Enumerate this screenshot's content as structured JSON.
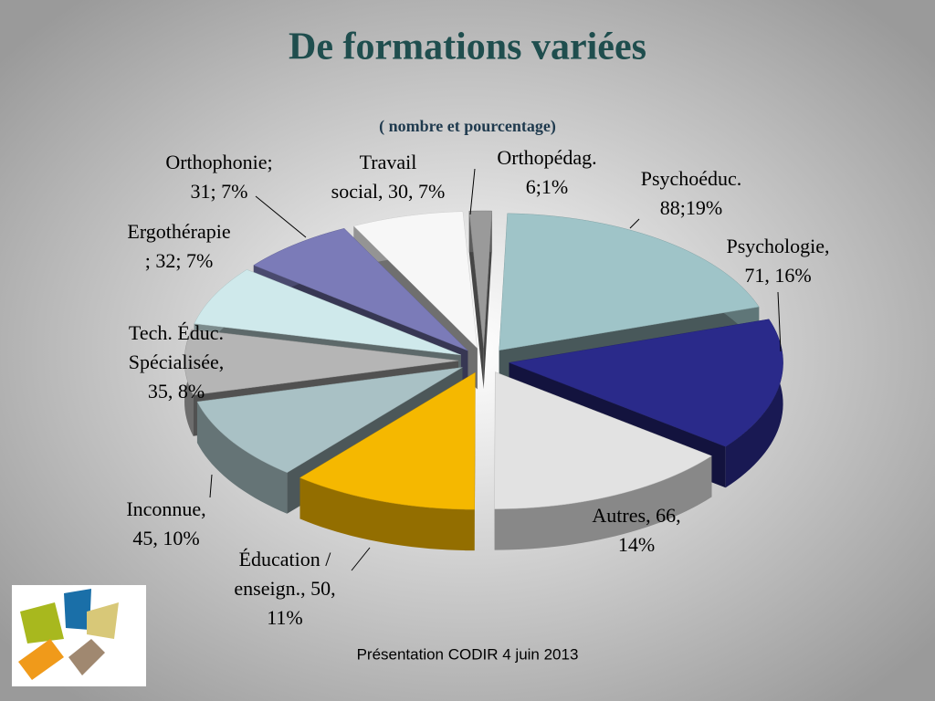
{
  "chart_data": {
    "type": "pie",
    "title": "De formations variées",
    "subtitle": "( nombre et pourcentage)",
    "categories": [
      "Psychoéduc.",
      "Psychologie",
      "Autres",
      "Éducation / enseign.",
      "Inconnue",
      "Tech. Éduc. Spécialisée",
      "Ergothérapie",
      "Orthophonie",
      "Travail social",
      "Orthopédag."
    ],
    "values": [
      88,
      71,
      66,
      50,
      45,
      35,
      32,
      31,
      30,
      6
    ],
    "value_labels": [
      [
        "Psychoéduc.",
        "88;19%"
      ],
      [
        "Psychologie,",
        "71, 16%"
      ],
      [
        "Autres, 66,",
        "14%"
      ],
      [
        "Éducation /",
        "enseign., 50,",
        "11%"
      ],
      [
        "Inconnue,",
        "45, 10%"
      ],
      [
        "Tech. Éduc.",
        "Spécialisée,",
        "35, 8%"
      ],
      [
        "Ergothérapie",
        "; 32; 7%"
      ],
      [
        "Orthophonie;",
        "31; 7%"
      ],
      [
        "Travail",
        "social, 30, 7%"
      ],
      [
        "Orthopédag.",
        "6;1%"
      ]
    ],
    "colors": [
      "#9fc4c8",
      "#2a2a8a",
      "#e2e2e2",
      "#f5b800",
      "#a9c1c5",
      "#b5b5b5",
      "#cfe9eb",
      "#7b7bb8",
      "#f7f7f7",
      "#9a9a9a"
    ]
  },
  "footer": "Présentation CODIR 4 juin 2013"
}
